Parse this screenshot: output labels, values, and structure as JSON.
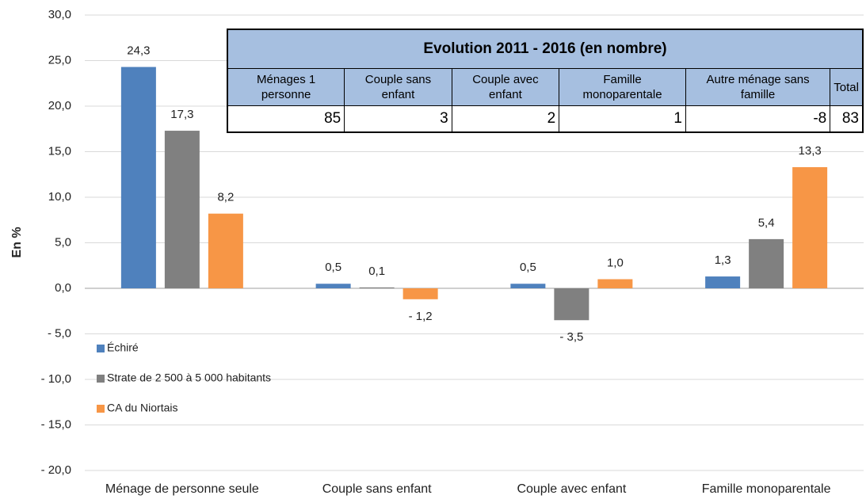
{
  "chart_data": {
    "type": "bar",
    "ylabel": "En %",
    "categories": [
      "Ménage de personne seule",
      "Couple sans enfant",
      "Couple avec enfant",
      "Famille monoparentale"
    ],
    "series": [
      {
        "name": "Échiré",
        "color": "#4f81bd",
        "values": [
          24.3,
          0.5,
          0.5,
          1.3
        ],
        "value_labels": [
          "24,3",
          "0,5",
          "0,5",
          "1,3"
        ]
      },
      {
        "name": "Strate de 2 500 à 5 000 habitants",
        "color": "#808080",
        "values": [
          17.3,
          0.1,
          -3.5,
          5.4
        ],
        "value_labels": [
          "17,3",
          "0,1",
          "- 3,5",
          "5,4"
        ]
      },
      {
        "name": "CA du Niortais",
        "color": "#f79646",
        "values": [
          8.2,
          -1.2,
          1.0,
          13.3
        ],
        "value_labels": [
          "8,2",
          "- 1,2",
          "1,0",
          "13,3"
        ]
      }
    ],
    "ylim": [
      -20,
      30
    ],
    "yticks": [
      {
        "value": 30,
        "label": "30,0"
      },
      {
        "value": 25,
        "label": "25,0"
      },
      {
        "value": 20,
        "label": "20,0"
      },
      {
        "value": 15,
        "label": "15,0"
      },
      {
        "value": 10,
        "label": "10,0"
      },
      {
        "value": 5,
        "label": "5,0"
      },
      {
        "value": 0,
        "label": "0,0"
      },
      {
        "value": -5,
        "label": "- 5,0"
      },
      {
        "value": -10,
        "label": "- 10,0"
      },
      {
        "value": -15,
        "label": "- 15,0"
      },
      {
        "value": -20,
        "label": "- 20,0"
      }
    ],
    "grid": true,
    "legend": "left"
  },
  "table": {
    "title": "Evolution 2011 - 2016 (en nombre)",
    "headers": [
      "Ménages 1 personne",
      "Couple sans enfant",
      "Couple avec enfant",
      "Famille monoparentale",
      "Autre ménage sans famille",
      "Total"
    ],
    "values": [
      85,
      3,
      2,
      1,
      -8,
      83
    ]
  }
}
